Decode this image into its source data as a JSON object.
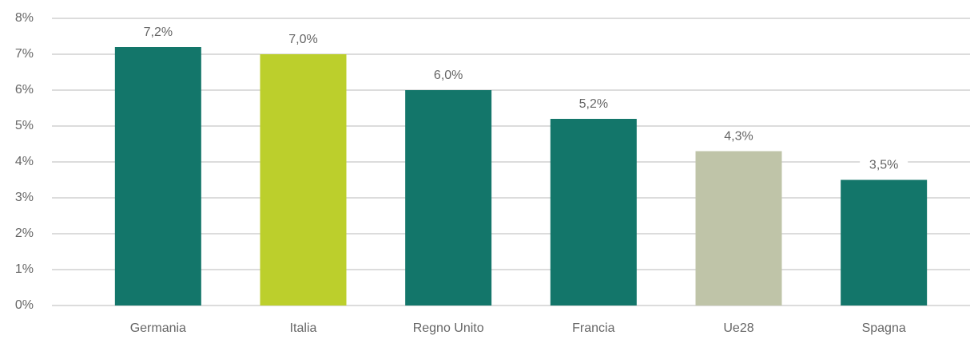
{
  "chart_data": {
    "type": "bar",
    "categories": [
      "Germania",
      "Italia",
      "Regno Unito",
      "Francia",
      "Ue28",
      "Spagna"
    ],
    "values": [
      7.2,
      7.0,
      6.0,
      5.2,
      4.3,
      3.5
    ],
    "value_labels": [
      "7,2%",
      "7,0%",
      "6,0%",
      "5,2%",
      "4,3%",
      "3,5%"
    ],
    "colors": [
      "#13766a",
      "#bccf2c",
      "#13766a",
      "#13766a",
      "#bfc4a8",
      "#13766a"
    ],
    "ylim": [
      0,
      8
    ],
    "yticks": [
      {
        "value": 0,
        "label": "0%"
      },
      {
        "value": 1,
        "label": "1%"
      },
      {
        "value": 2,
        "label": "2%"
      },
      {
        "value": 3,
        "label": "3%"
      },
      {
        "value": 4,
        "label": "4%"
      },
      {
        "value": 5,
        "label": "5%"
      },
      {
        "value": 6,
        "label": "6%"
      },
      {
        "value": 7,
        "label": "7%"
      },
      {
        "value": 8,
        "label": "8%"
      }
    ],
    "grid": true
  }
}
